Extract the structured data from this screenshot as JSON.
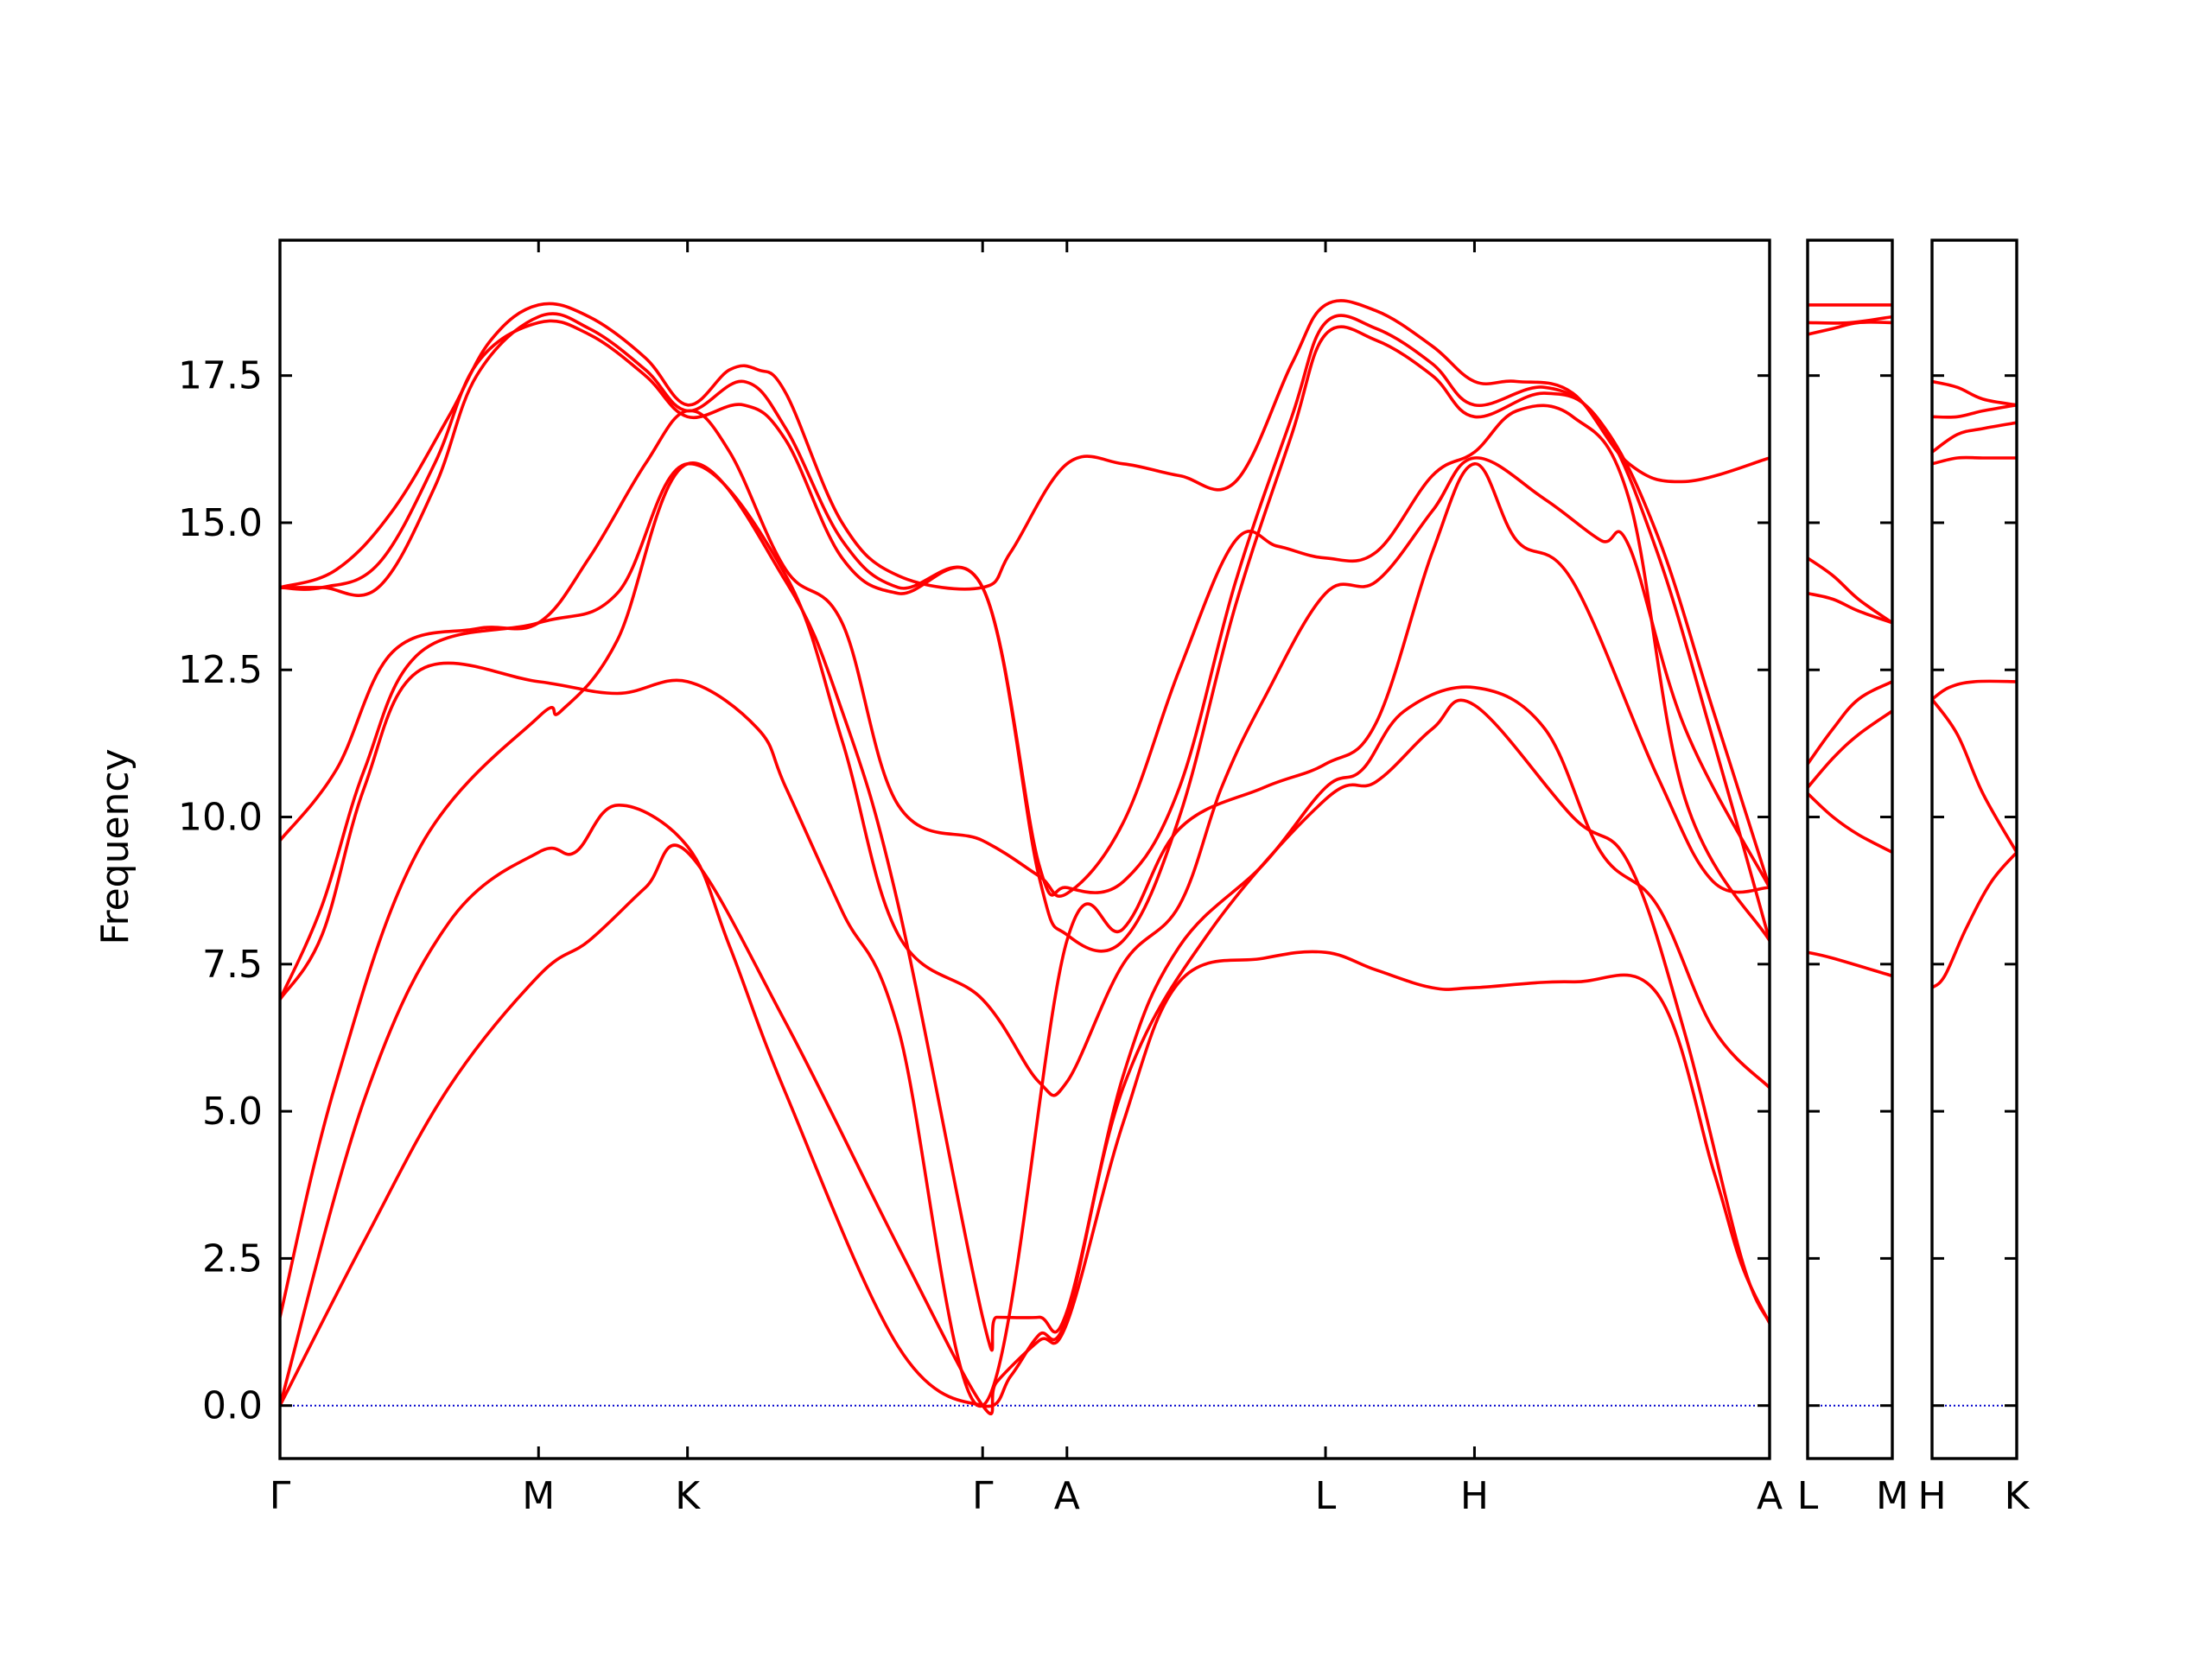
{
  "chart_data": {
    "type": "line",
    "title": "",
    "xlabel": "",
    "ylabel": "Frequency",
    "ylim": [
      -0.9,
      19.8
    ],
    "y_ticks": [
      0.0,
      2.5,
      5.0,
      7.5,
      10.0,
      12.5,
      15.0,
      17.5
    ],
    "y_tick_labels": [
      "0.0",
      "2.5",
      "5.0",
      "7.5",
      "10.0",
      "12.5",
      "15.0",
      "17.5"
    ],
    "grid": false,
    "line_color": "#ff0000",
    "zero_line_color": "#0000cc",
    "panels": [
      {
        "xlim": [
          0,
          5.3
        ],
        "points": [
          {
            "x": 0,
            "label": "Γ"
          },
          {
            "x": 0.92,
            "label": "M"
          },
          {
            "x": 1.45,
            "label": "K"
          },
          {
            "x": 2.5,
            "label": "Γ"
          },
          {
            "x": 2.8,
            "label": "A"
          },
          {
            "x": 3.72,
            "label": "L"
          },
          {
            "x": 4.25,
            "label": "H"
          },
          {
            "x": 5.3,
            "label": "A"
          }
        ],
        "series": [
          {
            "x": [
              0,
              0.3,
              0.6,
              0.92,
              1.1,
              1.3,
              1.45,
              1.8,
              2.2,
              2.5,
              2.55,
              2.7,
              2.8,
              3.0,
              3.2,
              3.5,
              3.72,
              3.9,
              4.1,
              4.25,
              4.6,
              4.9,
              5.1,
              5.2,
              5.3
            ],
            "y": [
              0,
              2.8,
              5.4,
              7.3,
              7.9,
              8.8,
              9.4,
              6.5,
              2.7,
              0,
              0.4,
              1.1,
              1.4,
              4.8,
              7.2,
              7.6,
              7.7,
              7.4,
              7.1,
              7.1,
              7.2,
              7.0,
              4.0,
              2.4,
              1.4
            ]
          },
          {
            "x": [
              0,
              0.3,
              0.6,
              0.92,
              1.05,
              1.2,
              1.45,
              1.6,
              1.8,
              2.2,
              2.5,
              2.6,
              2.7,
              2.8,
              3.0,
              3.3,
              3.72,
              3.9,
              4.1,
              4.25,
              4.6,
              4.8,
              5.0,
              5.2,
              5.3
            ],
            "y": [
              0,
              5.2,
              8.2,
              9.4,
              9.4,
              10.2,
              9.5,
              7.8,
              5.3,
              1.0,
              0,
              0.5,
              1.2,
              1.5,
              5.4,
              8.0,
              10.3,
              10.6,
              11.5,
              11.9,
              10.0,
              9.2,
              6.3,
              2.5,
              1.4
            ]
          },
          {
            "x": [
              0,
              0.2,
              0.5,
              0.92,
              1.0,
              1.2,
              1.45,
              1.8,
              2.0,
              2.2,
              2.5,
              2.55,
              2.7,
              2.8,
              3.0,
              3.2,
              3.5,
              3.72,
              3.85,
              4.0,
              4.25,
              4.5,
              4.7,
              4.9,
              5.1,
              5.3
            ],
            "y": [
              1.5,
              5.5,
              9.5,
              11.7,
              11.8,
              13.0,
              16.0,
              14.0,
              11.8,
              8.5,
              1.5,
              1.5,
              1.5,
              1.6,
              5.6,
              7.8,
              9.2,
              10.5,
              10.8,
              11.8,
              12.2,
              11.5,
              9.4,
              8.5,
              6.4,
              5.4
            ]
          },
          {
            "x": [
              0,
              0.15,
              0.3,
              0.5,
              0.92,
              1.2,
              1.45,
              1.7,
              1.8,
              2.0,
              2.2,
              2.5,
              2.8,
              3.0,
              3.2,
              3.5,
              3.72,
              3.9,
              4.1,
              4.25,
              4.4,
              4.6,
              4.9,
              5.1,
              5.3
            ],
            "y": [
              6.9,
              8.0,
              10.5,
              12.5,
              12.3,
              12.1,
              12.3,
              11.5,
              10.5,
              8.4,
              6.4,
              0,
              7.9,
              8.1,
              9.8,
              10.5,
              10.9,
              11.6,
              14.5,
              16.0,
              14.7,
              14.0,
              10.7,
              8.9,
              8.8
            ]
          },
          {
            "x": [
              0,
              0.15,
              0.3,
              0.5,
              0.92,
              1.2,
              1.45,
              1.8,
              2.0,
              2.2,
              2.5,
              2.7,
              2.8,
              3.0,
              3.2,
              3.35,
              3.5,
              3.72,
              3.9,
              4.1,
              4.25,
              4.5,
              4.7,
              4.8,
              5.0,
              5.3
            ],
            "y": [
              6.9,
              8.5,
              10.8,
              12.8,
              13.3,
              13.8,
              16.0,
              14.1,
              11.3,
              8.0,
              6.9,
              5.5,
              5.5,
              7.5,
              8.5,
              10.5,
              12.0,
              13.8,
              14.0,
              15.2,
              16.1,
              15.4,
              14.7,
              14.6,
              11.5,
              8.8
            ]
          },
          {
            "x": [
              0,
              0.2,
              0.4,
              0.7,
              0.92,
              1.1,
              1.3,
              1.45,
              1.6,
              1.8,
              2.0,
              2.2,
              2.5,
              2.7,
              2.8,
              3.0,
              3.2,
              3.4,
              3.55,
              3.72,
              3.9,
              4.1,
              4.25,
              4.4,
              4.6,
              4.8,
              5.0,
              5.3
            ],
            "y": [
              9.6,
              10.8,
              12.8,
              13.2,
              13.3,
              14.4,
              16.0,
              16.9,
              16.2,
              14.2,
              13.3,
              10.2,
              9.6,
              9.0,
              8.7,
              9.9,
              12.5,
              14.7,
              14.6,
              14.4,
              14.5,
              15.8,
              16.2,
              16.9,
              16.8,
              15.4,
              10.3,
              7.9
            ]
          },
          {
            "x": [
              0,
              0.15,
              0.35,
              0.55,
              0.7,
              0.92,
              1.1,
              1.3,
              1.45,
              1.65,
              1.8,
              2.0,
              2.2,
              2.5,
              2.7,
              2.8,
              3.0,
              3.2,
              3.4,
              3.6,
              3.72,
              3.9,
              4.1,
              4.25,
              4.5,
              4.7,
              4.9,
              5.1,
              5.3
            ],
            "y": [
              13.9,
              13.9,
              14.3,
              16.0,
              17.7,
              18.4,
              18.2,
              17.5,
              16.8,
              17.0,
              16.4,
              14.4,
              13.8,
              13.9,
              9.0,
              8.0,
              7.9,
              10.0,
              13.6,
              16.5,
              18.2,
              18.1,
              17.5,
              16.8,
              17.2,
              16.7,
              14.5,
              11.3,
              7.9
            ]
          },
          {
            "x": [
              0,
              0.15,
              0.35,
              0.55,
              0.7,
              0.92,
              1.1,
              1.3,
              1.45,
              1.65,
              1.8,
              2.0,
              2.2,
              2.5,
              2.7,
              2.8,
              3.0,
              3.2,
              3.4,
              3.6,
              3.72,
              3.9,
              4.1,
              4.25,
              4.5,
              4.7,
              4.9,
              5.1,
              5.3
            ],
            "y": [
              13.9,
              13.9,
              13.9,
              15.6,
              17.5,
              18.5,
              18.3,
              17.6,
              16.9,
              17.4,
              16.6,
              14.7,
              13.9,
              13.9,
              9.2,
              8.8,
              8.9,
              10.5,
              14.0,
              16.8,
              18.4,
              18.3,
              17.7,
              17.0,
              17.3,
              16.7,
              14.8,
              11.8,
              8.8
            ]
          },
          {
            "x": [
              0,
              0.2,
              0.4,
              0.6,
              0.75,
              0.92,
              1.1,
              1.3,
              1.45,
              1.6,
              1.7,
              1.8,
              2.0,
              2.2,
              2.5,
              2.6,
              2.8,
              3.0,
              3.2,
              3.4,
              3.6,
              3.72,
              3.9,
              4.1,
              4.25,
              4.4,
              4.6,
              4.8,
              5.0,
              5.3
            ],
            "y": [
              13.9,
              14.2,
              15.2,
              16.8,
              18.1,
              18.7,
              18.5,
              17.8,
              17.0,
              17.6,
              17.6,
              17.2,
              15.0,
              14.1,
              13.9,
              14.5,
              16.0,
              16.0,
              15.8,
              15.7,
              17.7,
              18.7,
              18.6,
              18.0,
              17.4,
              17.4,
              17.2,
              16.0,
              15.7,
              16.1
            ]
          }
        ]
      },
      {
        "xlim": [
          0,
          1
        ],
        "points": [
          {
            "x": 0,
            "label": "L"
          },
          {
            "x": 1,
            "label": "M"
          }
        ],
        "series": [
          {
            "x": [
              0,
              0.3,
              1
            ],
            "y": [
              7.7,
              7.6,
              7.3
            ]
          },
          {
            "x": [
              0,
              0.3,
              0.6,
              1
            ],
            "y": [
              10.4,
              10.0,
              9.7,
              9.4
            ]
          },
          {
            "x": [
              0,
              0.3,
              0.6,
              1
            ],
            "y": [
              10.5,
              11.0,
              11.4,
              11.8
            ]
          },
          {
            "x": [
              0,
              0.3,
              0.6,
              1
            ],
            "y": [
              10.9,
              11.5,
              12.0,
              12.3
            ]
          },
          {
            "x": [
              0,
              0.3,
              0.6,
              1
            ],
            "y": [
              13.8,
              13.7,
              13.5,
              13.3
            ]
          },
          {
            "x": [
              0,
              0.3,
              0.6,
              1
            ],
            "y": [
              14.4,
              14.1,
              13.7,
              13.3
            ]
          },
          {
            "x": [
              0,
              0.3,
              0.6,
              1
            ],
            "y": [
              18.2,
              18.3,
              18.4,
              18.4
            ]
          },
          {
            "x": [
              0,
              0.5,
              1
            ],
            "y": [
              18.4,
              18.4,
              18.5
            ]
          },
          {
            "x": [
              0,
              0.5,
              1
            ],
            "y": [
              18.7,
              18.7,
              18.7
            ]
          }
        ]
      },
      {
        "xlim": [
          0,
          1
        ],
        "points": [
          {
            "x": 0,
            "label": "H"
          },
          {
            "x": 1,
            "label": "K"
          }
        ],
        "series": [
          {
            "x": [
              0,
              0.15,
              0.4,
              0.7,
              1
            ],
            "y": [
              7.1,
              7.3,
              8.1,
              8.9,
              9.4
            ]
          },
          {
            "x": [
              0,
              0.3,
              0.6,
              1
            ],
            "y": [
              12.0,
              11.4,
              10.4,
              9.4
            ]
          },
          {
            "x": [
              0,
              0.2,
              0.5,
              1
            ],
            "y": [
              12.0,
              12.2,
              12.3,
              12.3
            ]
          },
          {
            "x": [
              0,
              0.3,
              0.6,
              1
            ],
            "y": [
              16.0,
              16.1,
              16.1,
              16.1
            ]
          },
          {
            "x": [
              0,
              0.3,
              0.6,
              1
            ],
            "y": [
              16.2,
              16.5,
              16.6,
              16.7
            ]
          },
          {
            "x": [
              0,
              0.3,
              0.6,
              1
            ],
            "y": [
              16.8,
              16.8,
              16.9,
              17.0
            ]
          },
          {
            "x": [
              0,
              0.3,
              0.6,
              1
            ],
            "y": [
              17.4,
              17.3,
              17.1,
              17.0
            ]
          }
        ]
      }
    ]
  }
}
